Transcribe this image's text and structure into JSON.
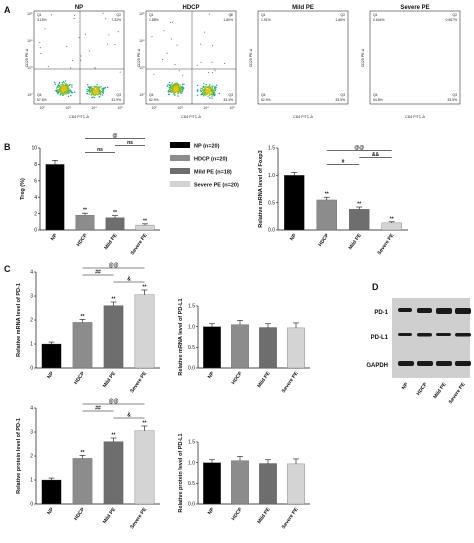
{
  "panels": {
    "a": "A",
    "b": "B",
    "c": "C",
    "d": "D"
  },
  "flow": {
    "x_axis_label": "CD4 FITC-A",
    "y_axis_label": "CD25 PE-A",
    "plots": [
      {
        "title": "NP",
        "q1": "Q1",
        "q1_val": "3.15%",
        "q2": "Q2",
        "q2_val": "7.32%",
        "q3": "Q3",
        "q3_val": "31.9%",
        "q4": "Q4",
        "q4_val": "57.6%"
      },
      {
        "title": "HDCP",
        "q1": "Q1",
        "q1_val": "1.88%",
        "q2": "Q2",
        "q2_val": "1.80%",
        "q3": "Q3",
        "q3_val": "33.4%",
        "q4": "Q4",
        "q4_val": "62.9%"
      },
      {
        "title": "Mild PE",
        "q1": "Q1",
        "q1_val": "1.91%",
        "q2": "Q2",
        "q2_val": "1.66%",
        "q3": "Q3",
        "q3_val": "33.5%",
        "q4": "Q4",
        "q4_val": "62.9%"
      },
      {
        "title": "Severe PE",
        "q1": "Q1",
        "q1_val": "0.644%",
        "q2": "Q2",
        "q2_val": "0.657%",
        "q3": "Q3",
        "q3_val": "33.5%",
        "q4": "Q4",
        "q4_val": "64.8%"
      }
    ]
  },
  "legend": [
    {
      "label": "NP (n=20)",
      "color": "#000000"
    },
    {
      "label": "HDCP (n=20)",
      "color": "#8c8c8c"
    },
    {
      "label": "Mild PE (n=18)",
      "color": "#6e6e6e"
    },
    {
      "label": "Severe PE (n=20)",
      "color": "#d4d4d4"
    }
  ],
  "categories": [
    "NP",
    "HDCP",
    "Mild PE",
    "Severe PE"
  ],
  "colors": [
    "#000000",
    "#8c8c8c",
    "#6e6e6e",
    "#d4d4d4"
  ],
  "chart_data": [
    {
      "id": "treg",
      "type": "bar",
      "ylabel": "Treg (%)",
      "categories": [
        "NP",
        "HDCP",
        "Mild PE",
        "Severe PE"
      ],
      "values": [
        8.0,
        1.8,
        1.5,
        0.6
      ],
      "errors": [
        0.5,
        0.25,
        0.25,
        0.15
      ],
      "ylim": [
        0,
        10
      ],
      "yticks": [
        "0",
        "2",
        "4",
        "6",
        "8",
        "10"
      ],
      "bar_sig": [
        "",
        "**",
        "**",
        "**"
      ],
      "brackets": [
        {
          "from": 1,
          "to": 3,
          "label": "@"
        },
        {
          "from": 1,
          "to": 2,
          "label": "ns"
        },
        {
          "from": 2,
          "to": 3,
          "label": "ns"
        }
      ]
    },
    {
      "id": "foxp3",
      "type": "bar",
      "ylabel": "Relative mRNA level of Foxp3",
      "categories": [
        "NP",
        "HDCP",
        "Mild PE",
        "Severe PE"
      ],
      "values": [
        1.0,
        0.55,
        0.38,
        0.13
      ],
      "errors": [
        0.05,
        0.05,
        0.04,
        0.02
      ],
      "ylim": [
        0,
        1.5
      ],
      "yticks": [
        "0.0",
        "0.5",
        "1.0",
        "1.5"
      ],
      "bar_sig": [
        "",
        "**",
        "**",
        "**"
      ],
      "brackets": [
        {
          "from": 1,
          "to": 3,
          "label": "@@"
        },
        {
          "from": 1,
          "to": 2,
          "label": "#"
        },
        {
          "from": 2,
          "to": 3,
          "label": "&&"
        }
      ]
    },
    {
      "id": "pd1_mrna",
      "type": "bar",
      "ylabel": "Relative mRNA level of PD-1",
      "categories": [
        "NP",
        "HDCP",
        "Mild PE",
        "Severe PE"
      ],
      "values": [
        1.0,
        1.9,
        2.6,
        3.05
      ],
      "errors": [
        0.08,
        0.12,
        0.15,
        0.2
      ],
      "ylim": [
        0,
        4
      ],
      "yticks": [
        "0",
        "1",
        "2",
        "3",
        "4"
      ],
      "bar_sig": [
        "",
        "**",
        "**",
        "**"
      ],
      "brackets": [
        {
          "from": 1,
          "to": 3,
          "label": "@@"
        },
        {
          "from": 2,
          "to": 3,
          "label": "&"
        },
        {
          "from": 1,
          "to": 2,
          "label": "##"
        }
      ]
    },
    {
      "id": "pdl1_mrna",
      "type": "bar",
      "ylabel": "Relative mRNA level of PD-L1",
      "categories": [
        "NP",
        "HDCP",
        "Mild PE",
        "Severe PE"
      ],
      "values": [
        1.0,
        1.05,
        0.98,
        0.97
      ],
      "errors": [
        0.07,
        0.1,
        0.09,
        0.12
      ],
      "ylim": [
        0,
        1.5
      ],
      "yticks": [
        "0.0",
        "0.5",
        "1.0",
        "1.5"
      ],
      "bar_sig": [
        "",
        "",
        "",
        ""
      ],
      "brackets": []
    },
    {
      "id": "pd1_protein",
      "type": "bar",
      "ylabel": "Relative protein level of PD-1",
      "categories": [
        "NP",
        "HDCP",
        "Mild PE",
        "Severe PE"
      ],
      "values": [
        1.0,
        1.9,
        2.6,
        3.05
      ],
      "errors": [
        0.08,
        0.12,
        0.15,
        0.2
      ],
      "ylim": [
        0,
        4
      ],
      "yticks": [
        "0",
        "1",
        "2",
        "3",
        "4"
      ],
      "bar_sig": [
        "",
        "**",
        "**",
        "**"
      ],
      "brackets": [
        {
          "from": 1,
          "to": 3,
          "label": "@@"
        },
        {
          "from": 2,
          "to": 3,
          "label": "&"
        },
        {
          "from": 1,
          "to": 2,
          "label": "##"
        }
      ]
    },
    {
      "id": "pdl1_protein",
      "type": "bar",
      "ylabel": "Relative protein level of PD-L1",
      "categories": [
        "NP",
        "HDCP",
        "Mild PE",
        "Severe PE"
      ],
      "values": [
        1.0,
        1.05,
        0.98,
        0.97
      ],
      "errors": [
        0.07,
        0.1,
        0.09,
        0.12
      ],
      "ylim": [
        0,
        1.5
      ],
      "yticks": [
        "0.0",
        "0.5",
        "1.0",
        "1.5"
      ],
      "bar_sig": [
        "",
        "",
        "",
        ""
      ],
      "brackets": []
    }
  ],
  "western": {
    "rows": [
      "PD-1",
      "PD-L1",
      "GAPDH"
    ],
    "lanes": [
      "NP",
      "HDCP",
      "Mild PE",
      "Severe PE"
    ]
  }
}
